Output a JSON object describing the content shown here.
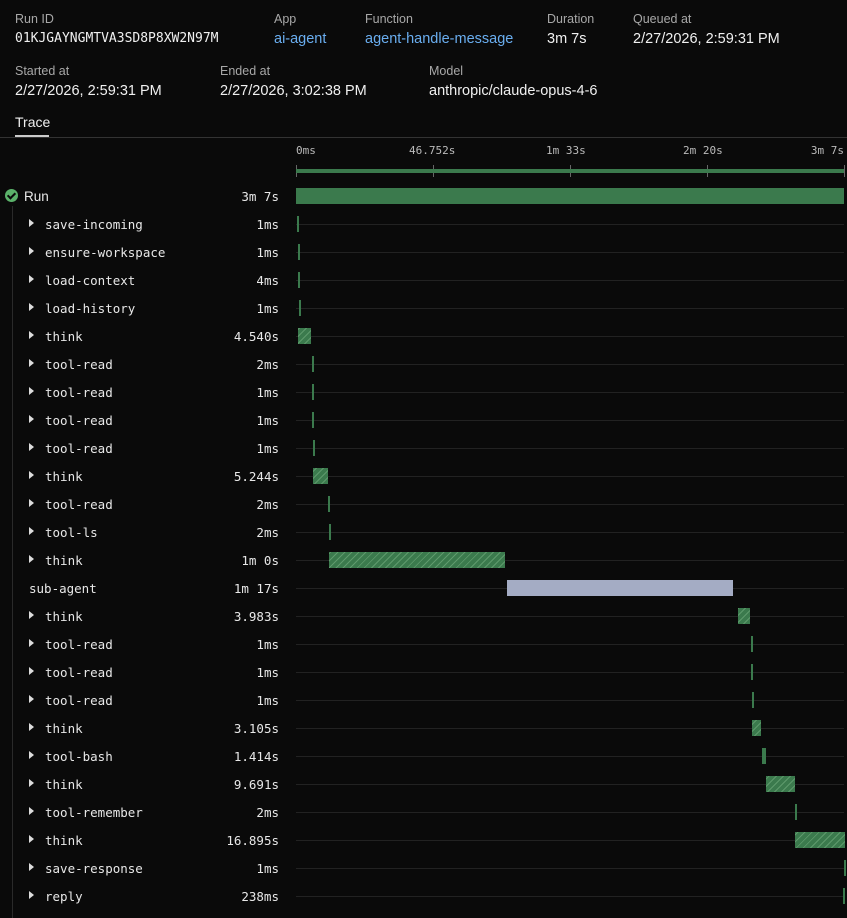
{
  "header": {
    "run_id": {
      "label": "Run ID",
      "value": "01KJGAYNGMTVA3SD8P8XW2N97M"
    },
    "app": {
      "label": "App",
      "value": "ai-agent"
    },
    "function": {
      "label": "Function",
      "value": "agent-handle-message"
    },
    "duration": {
      "label": "Duration",
      "value": "3m 7s"
    },
    "queued_at": {
      "label": "Queued at",
      "value": "2/27/2026, 2:59:31 PM"
    },
    "started_at": {
      "label": "Started at",
      "value": "2/27/2026, 2:59:31 PM"
    },
    "ended_at": {
      "label": "Ended at",
      "value": "2/27/2026, 3:02:38 PM"
    },
    "model": {
      "label": "Model",
      "value": "anthropic/claude-opus-4-6"
    }
  },
  "tabs": [
    {
      "label": "Trace",
      "active": true
    }
  ],
  "timeline": {
    "total_s": 187,
    "ticks": [
      "0ms",
      "46.752s",
      "1m 33s",
      "2m 20s",
      "3m 7s"
    ]
  },
  "colors": {
    "step": "#3b7a4d",
    "sub_agent": "#a4acc4",
    "success": "#5bb26a",
    "link": "#6aaef0"
  },
  "rows": [
    {
      "name": "Run",
      "dur": "3m 7s",
      "start": 0,
      "len": 187,
      "type": "root"
    },
    {
      "name": "save-incoming",
      "dur": "1ms",
      "start": 0.3,
      "len": 0.001,
      "type": "step"
    },
    {
      "name": "ensure-workspace",
      "dur": "1ms",
      "start": 0.6,
      "len": 0.001,
      "type": "step"
    },
    {
      "name": "load-context",
      "dur": "4ms",
      "start": 0.8,
      "len": 0.004,
      "type": "step"
    },
    {
      "name": "load-history",
      "dur": "1ms",
      "start": 1.0,
      "len": 0.001,
      "type": "step"
    },
    {
      "name": "think",
      "dur": "4.540s",
      "start": 0.7,
      "len": 4.54,
      "type": "think"
    },
    {
      "name": "tool-read",
      "dur": "2ms",
      "start": 5.4,
      "len": 0.002,
      "type": "step"
    },
    {
      "name": "tool-read",
      "dur": "1ms",
      "start": 5.5,
      "len": 0.001,
      "type": "step"
    },
    {
      "name": "tool-read",
      "dur": "1ms",
      "start": 5.6,
      "len": 0.001,
      "type": "step"
    },
    {
      "name": "tool-read",
      "dur": "1ms",
      "start": 5.7,
      "len": 0.001,
      "type": "step"
    },
    {
      "name": "think",
      "dur": "5.244s",
      "start": 5.8,
      "len": 5.244,
      "type": "think"
    },
    {
      "name": "tool-read",
      "dur": "2ms",
      "start": 11.0,
      "len": 0.002,
      "type": "step"
    },
    {
      "name": "tool-ls",
      "dur": "2ms",
      "start": 11.1,
      "len": 0.002,
      "type": "step"
    },
    {
      "name": "think",
      "dur": "1m 0s",
      "start": 11.2,
      "len": 60,
      "type": "think"
    },
    {
      "name": "sub-agent",
      "dur": "1m 17s",
      "start": 72,
      "len": 77,
      "type": "sub"
    },
    {
      "name": "think",
      "dur": "3.983s",
      "start": 150.8,
      "len": 3.983,
      "type": "think"
    },
    {
      "name": "tool-read",
      "dur": "1ms",
      "start": 155.3,
      "len": 0.001,
      "type": "step"
    },
    {
      "name": "tool-read",
      "dur": "1ms",
      "start": 155.4,
      "len": 0.001,
      "type": "step"
    },
    {
      "name": "tool-read",
      "dur": "1ms",
      "start": 155.5,
      "len": 0.001,
      "type": "step"
    },
    {
      "name": "think",
      "dur": "3.105s",
      "start": 155.6,
      "len": 3.105,
      "type": "think"
    },
    {
      "name": "tool-bash",
      "dur": "1.414s",
      "start": 159.0,
      "len": 1.414,
      "type": "step"
    },
    {
      "name": "think",
      "dur": "9.691s",
      "start": 160.5,
      "len": 9.691,
      "type": "think"
    },
    {
      "name": "tool-remember",
      "dur": "2ms",
      "start": 170.2,
      "len": 0.002,
      "type": "step"
    },
    {
      "name": "think",
      "dur": "16.895s",
      "start": 170.3,
      "len": 16.895,
      "type": "think"
    },
    {
      "name": "save-response",
      "dur": "1ms",
      "start": 186.9,
      "len": 0.001,
      "type": "step"
    },
    {
      "name": "reply",
      "dur": "238ms",
      "start": 186.7,
      "len": 0.238,
      "type": "step"
    }
  ]
}
